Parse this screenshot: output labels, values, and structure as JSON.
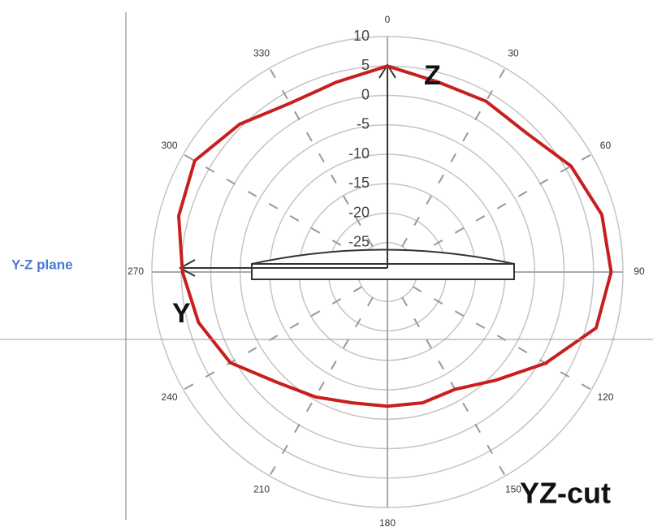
{
  "chart_data": {
    "type": "polar",
    "title": "YZ-cut",
    "side_label": "Y-Z plane",
    "axis_labels": [
      "Z",
      "Y"
    ],
    "x": [
      0,
      15,
      30,
      45,
      60,
      75,
      90,
      105,
      120,
      135,
      150,
      165,
      180,
      195,
      210,
      225,
      240,
      255,
      270,
      285,
      300,
      315,
      330,
      345
    ],
    "series": [
      {
        "color": "#c81e1e",
        "values": [
          5,
          3.4,
          3.5,
          3.4,
          6,
          7.7,
          8,
          6.7,
          1,
          -4,
          -7,
          -7,
          -7.2,
          -7,
          -5.5,
          -3.5,
          0.8,
          3.2,
          4.8,
          6.7,
          7.8,
          5.5,
          3.1,
          3.4
        ]
      }
    ],
    "xticks": [
      0,
      30,
      60,
      90,
      120,
      150,
      180,
      210,
      240,
      270,
      300,
      330
    ],
    "rlim": [
      -30,
      10
    ],
    "rticks": [
      10,
      5,
      0,
      -5,
      -10,
      -15,
      -20,
      -25
    ]
  }
}
